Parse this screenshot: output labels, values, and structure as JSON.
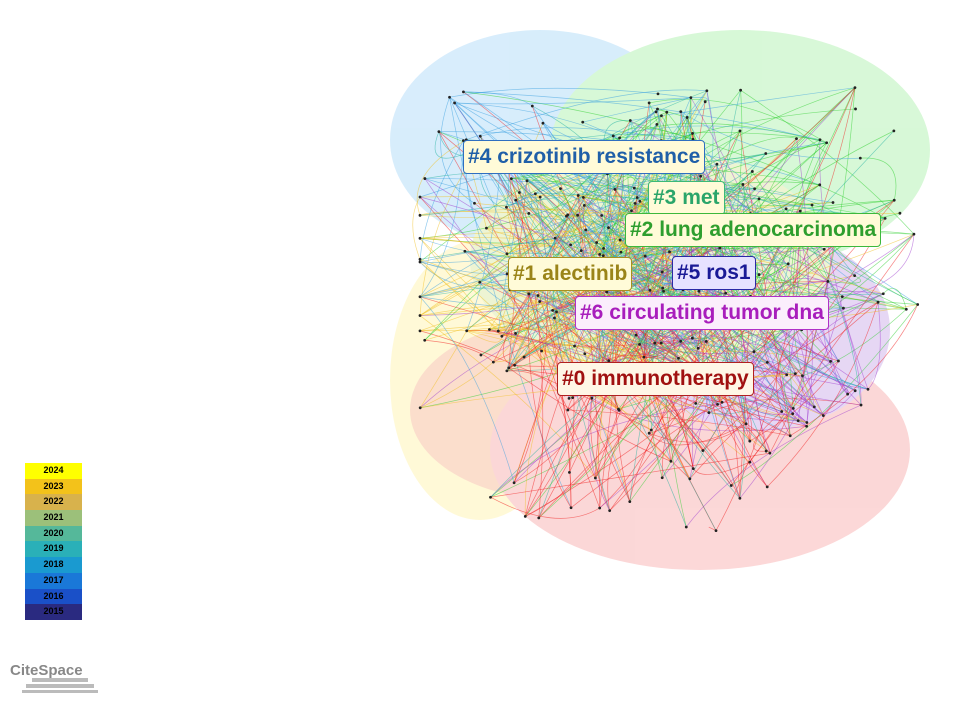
{
  "clusters": [
    {
      "label": "#4 crizotinib resistance",
      "color": "#1f5fa8",
      "border": "#2f6fc0",
      "background": "#fffbd8"
    },
    {
      "label": "#3 met",
      "color": "#2aa56a",
      "border": "#3cb878",
      "background": "#fffbd8"
    },
    {
      "label": "#2 lung adenocarcinoma",
      "color": "#2e9e2e",
      "border": "#3cb83c",
      "background": "#fffbd8"
    },
    {
      "label": "#1 alectinib",
      "color": "#9a8418",
      "border": "#a89020",
      "background": "#fffbd8"
    },
    {
      "label": "#5 ros1",
      "color": "#1a1a96",
      "border": "#2a2aa6",
      "background": "#e6e2ff"
    },
    {
      "label": "#6 circulating tumor dna",
      "color": "#a81ebc",
      "border": "#b030c8",
      "background": "#fbeefc"
    },
    {
      "label": "#0 immunotherapy",
      "color": "#a01010",
      "border": "#b02020",
      "background": "#fff6e6"
    }
  ],
  "legend": {
    "years": [
      {
        "label": "2024",
        "color": "#ffff00"
      },
      {
        "label": "2023",
        "color": "#f3c21a"
      },
      {
        "label": "2022",
        "color": "#d8b24c"
      },
      {
        "label": "2021",
        "color": "#9cc07a"
      },
      {
        "label": "2020",
        "color": "#55b89a"
      },
      {
        "label": "2019",
        "color": "#2ab0b8"
      },
      {
        "label": "2018",
        "color": "#1a9ad0"
      },
      {
        "label": "2017",
        "color": "#1a78d8"
      },
      {
        "label": "2016",
        "color": "#1a50c8"
      },
      {
        "label": "2015",
        "color": "#2a2a80"
      }
    ]
  },
  "logo": "CiteSpace"
}
